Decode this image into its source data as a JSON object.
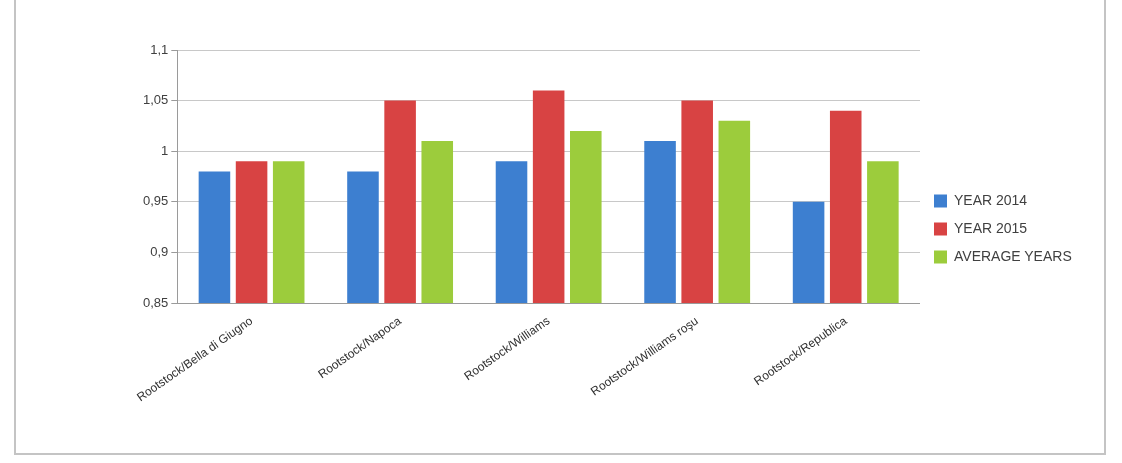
{
  "chart_data": {
    "type": "bar",
    "categories": [
      "Rootstock/Bella di Giugno",
      "Rootstock/Napoca",
      "Rootstock/Williams",
      "Rootstock/Williams roşu",
      "Rootstock/Republica"
    ],
    "series": [
      {
        "name": "YEAR 2014",
        "color": "#3d7fd0",
        "values": [
          0.98,
          0.98,
          0.99,
          1.01,
          0.95
        ]
      },
      {
        "name": "YEAR 2015",
        "color": "#d84343",
        "values": [
          0.99,
          1.05,
          1.06,
          1.05,
          1.04
        ]
      },
      {
        "name": "AVERAGE YEARS",
        "color": "#9ccc3c",
        "values": [
          0.99,
          1.01,
          1.02,
          1.03,
          0.99
        ]
      }
    ],
    "ylim": [
      0.85,
      1.1
    ],
    "yticks": [
      {
        "value": 0.85,
        "label": "0,85"
      },
      {
        "value": 0.9,
        "label": "0,9"
      },
      {
        "value": 0.95,
        "label": "0,95"
      },
      {
        "value": 1,
        "label": "1"
      },
      {
        "value": 1.05,
        "label": "1,05"
      },
      {
        "value": 1.1,
        "label": "1,1"
      }
    ],
    "grid": "y",
    "legend": "right"
  }
}
